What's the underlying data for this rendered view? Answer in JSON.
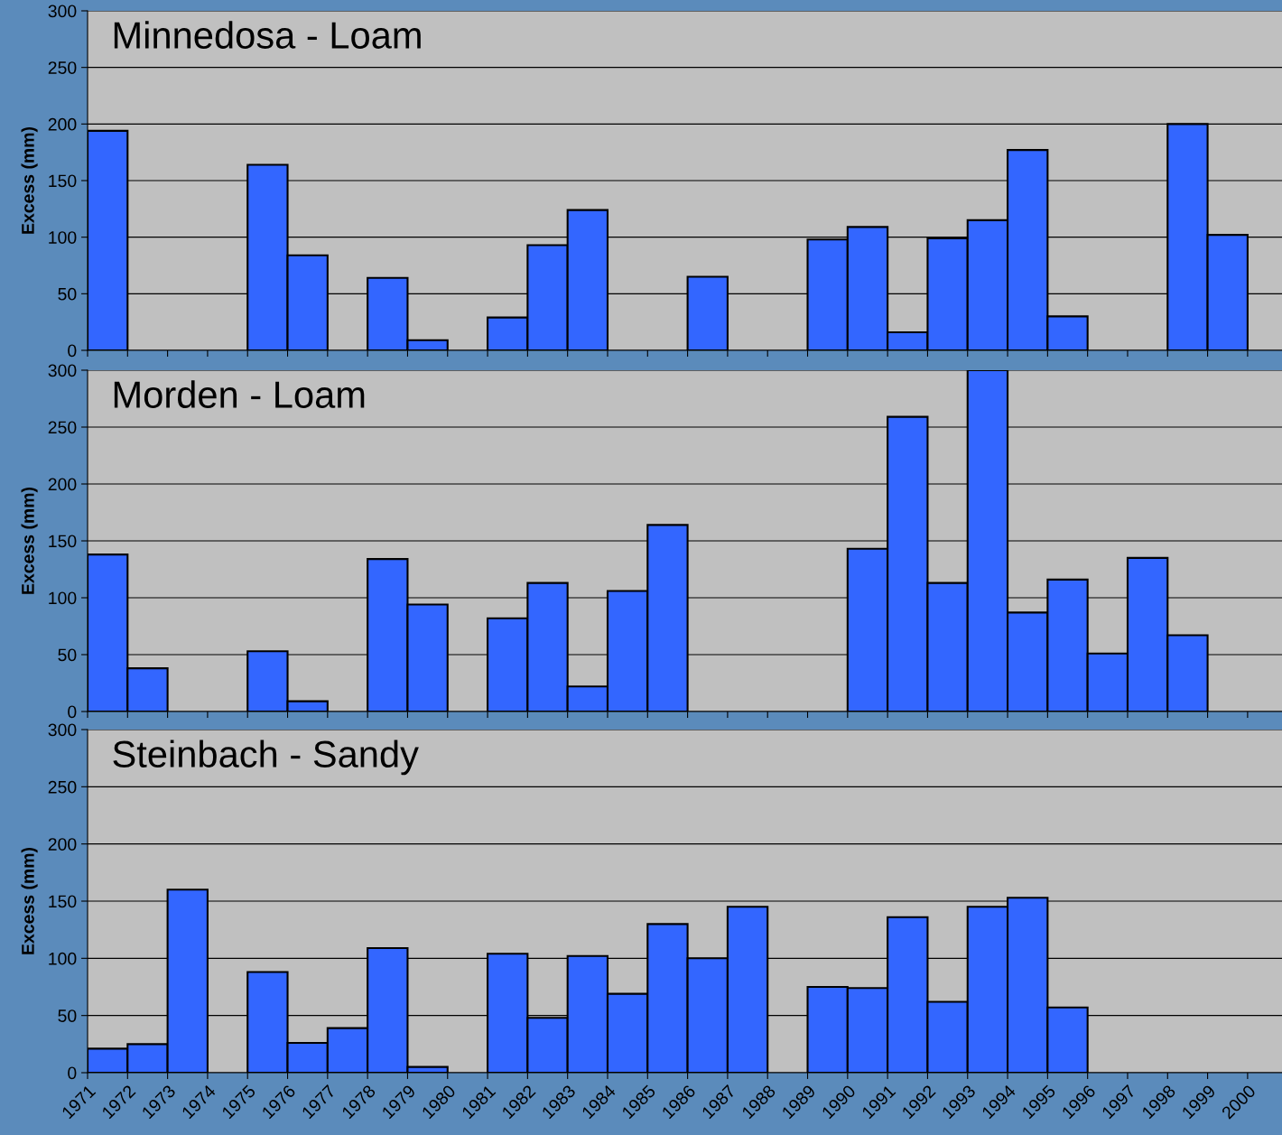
{
  "chart_data": [
    {
      "type": "histogram",
      "title": "Minnedosa - Loam",
      "ylabel": "Excess (mm)",
      "bins": [
        1971,
        1972,
        1973,
        1974,
        1975,
        1976,
        1977,
        1978,
        1979,
        1980,
        1981,
        1982,
        1983,
        1984,
        1985,
        1986,
        1987,
        1988,
        1989,
        1990,
        1991,
        1992,
        1993,
        1994,
        1995,
        1996,
        1997,
        1998,
        1999,
        2000
      ],
      "values": [
        194,
        null,
        null,
        null,
        164,
        84,
        null,
        64,
        9,
        null,
        29,
        93,
        124,
        null,
        null,
        65,
        null,
        null,
        98,
        109,
        16,
        99,
        115,
        177,
        30,
        null,
        null,
        200,
        102
      ],
      "color": "#3366ff",
      "xlim": [
        1971,
        2000.86
      ],
      "xticks": [
        1971,
        1972,
        1973,
        1974,
        1975,
        1976,
        1977,
        1978,
        1979,
        1980,
        1981,
        1982,
        1983,
        1984,
        1985,
        1986,
        1987,
        1988,
        1989,
        1990,
        1991,
        1992,
        1993,
        1994,
        1995,
        1996,
        1997,
        1998,
        1999,
        2000
      ],
      "ylim": [
        0,
        300
      ],
      "yticks": [
        0,
        50,
        100,
        150,
        200,
        250,
        300
      ],
      "grid": "y",
      "tick_labels": "y"
    },
    {
      "type": "histogram",
      "title": "Morden - Loam",
      "ylabel": "Excess (mm)",
      "bins": [
        1971,
        1972,
        1973,
        1974,
        1975,
        1976,
        1977,
        1978,
        1979,
        1980,
        1981,
        1982,
        1983,
        1984,
        1985,
        1986,
        1987,
        1988,
        1989,
        1990,
        1991,
        1992,
        1993,
        1994,
        1995,
        1996,
        1997,
        1998,
        1999,
        2000
      ],
      "values": [
        138,
        38,
        null,
        null,
        53,
        9,
        null,
        134,
        94,
        null,
        82,
        113,
        22,
        106,
        164,
        null,
        null,
        null,
        null,
        143,
        259,
        113,
        300,
        87,
        116,
        51,
        135,
        67,
        null
      ],
      "color": "#3366ff",
      "xlim": [
        1971,
        2000.86
      ],
      "xticks": [
        1971,
        1972,
        1973,
        1974,
        1975,
        1976,
        1977,
        1978,
        1979,
        1980,
        1981,
        1982,
        1983,
        1984,
        1985,
        1986,
        1987,
        1988,
        1989,
        1990,
        1991,
        1992,
        1993,
        1994,
        1995,
        1996,
        1997,
        1998,
        1999,
        2000
      ],
      "ylim": [
        0,
        300
      ],
      "yticks": [
        0,
        50,
        100,
        150,
        200,
        250,
        300
      ],
      "grid": "y",
      "tick_labels": "y"
    },
    {
      "type": "histogram",
      "title": "Steinbach - Sandy",
      "ylabel": "Excess (mm)",
      "bins": [
        1971,
        1972,
        1973,
        1974,
        1975,
        1976,
        1977,
        1978,
        1979,
        1980,
        1981,
        1982,
        1983,
        1984,
        1985,
        1986,
        1987,
        1988,
        1989,
        1990,
        1991,
        1992,
        1993,
        1994,
        1995,
        1996,
        1997,
        1998,
        1999,
        2000
      ],
      "values": [
        21,
        25,
        160,
        null,
        88,
        26,
        39,
        109,
        5,
        null,
        104,
        48,
        102,
        69,
        130,
        100,
        145,
        null,
        75,
        74,
        136,
        62,
        145,
        153,
        57,
        null,
        null,
        null,
        null
      ],
      "color": "#3366ff",
      "xlim": [
        1971,
        2000.86
      ],
      "xticks": [
        1971,
        1972,
        1973,
        1974,
        1975,
        1976,
        1977,
        1978,
        1979,
        1980,
        1981,
        1982,
        1983,
        1984,
        1985,
        1986,
        1987,
        1988,
        1989,
        1990,
        1991,
        1992,
        1993,
        1994,
        1995,
        1996,
        1997,
        1998,
        1999,
        2000
      ],
      "ylim": [
        0,
        300
      ],
      "yticks": [
        0,
        50,
        100,
        150,
        200,
        250,
        300
      ],
      "grid": "y"
    }
  ]
}
